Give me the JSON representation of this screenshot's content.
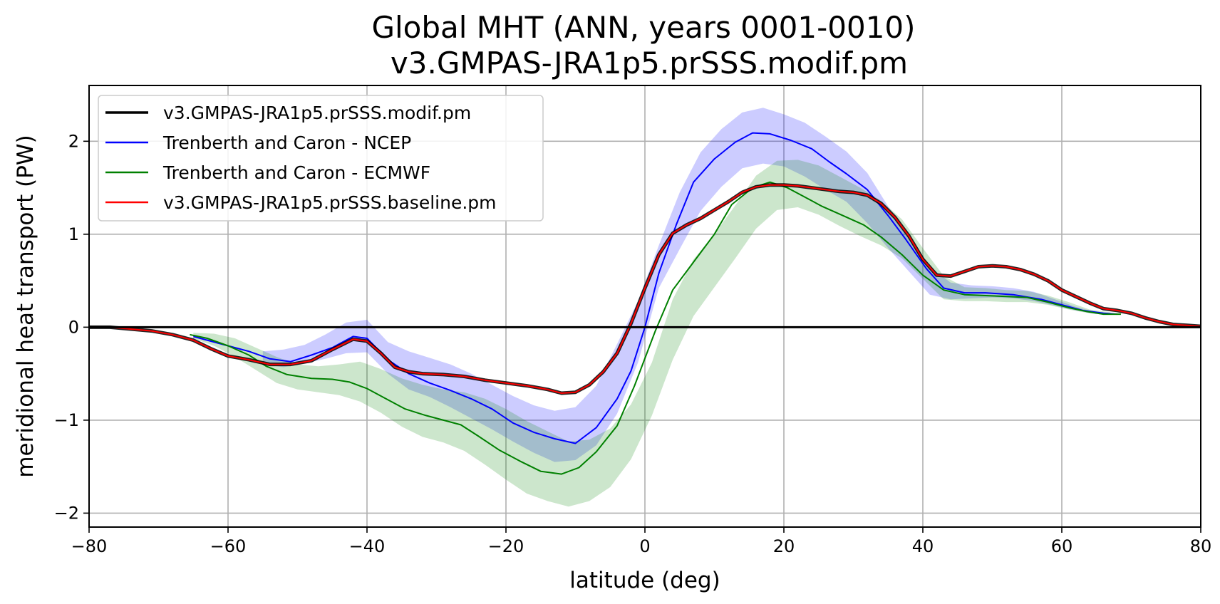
{
  "chart_data": {
    "type": "line",
    "title": "Global MHT (ANN, years 0001-0010)",
    "subtitle": "v3.GMPAS-JRA1p5.prSSS.modif.pm",
    "xlabel": "latitude (deg)",
    "ylabel": "meridional heat transport (PW)",
    "xlim": [
      -80,
      80
    ],
    "ylim": [
      -2.15,
      2.6
    ],
    "xticks": [
      -80,
      -60,
      -40,
      -20,
      0,
      20,
      40,
      60,
      80
    ],
    "xtick_labels": [
      "−80",
      "−60",
      "−40",
      "−20",
      "0",
      "20",
      "40",
      "60",
      "80"
    ],
    "yticks": [
      -2,
      -1,
      0,
      1,
      2
    ],
    "ytick_labels": [
      "−2",
      "−1",
      "0",
      "1",
      "2"
    ],
    "grid": true,
    "legend_position": "upper-left",
    "bands": [
      {
        "name": "NCEP uncertainty",
        "color": "#0000ff",
        "opacity": 0.2,
        "x": [
          -55,
          -52,
          -49,
          -46,
          -43,
          -40,
          -37,
          -34,
          -31,
          -28,
          -25,
          -22,
          -19,
          -16,
          -13,
          -10,
          -7,
          -4,
          -1,
          2,
          5,
          8,
          11,
          14,
          17,
          20,
          23,
          26,
          29,
          32,
          35,
          38,
          41,
          44,
          47,
          50,
          53,
          56,
          59,
          62,
          65
        ],
        "lower": [
          -0.4,
          -0.43,
          -0.39,
          -0.34,
          -0.28,
          -0.27,
          -0.5,
          -0.67,
          -0.75,
          -0.86,
          -0.98,
          -1.1,
          -1.23,
          -1.35,
          -1.45,
          -1.43,
          -1.27,
          -0.93,
          -0.38,
          0.42,
          0.84,
          1.25,
          1.51,
          1.71,
          1.76,
          1.73,
          1.62,
          1.48,
          1.35,
          1.12,
          0.85,
          0.6,
          0.35,
          0.3,
          0.31,
          0.32,
          0.31,
          0.28,
          0.23,
          0.18,
          0.14
        ],
        "upper": [
          -0.26,
          -0.24,
          -0.19,
          -0.08,
          0.05,
          0.08,
          -0.16,
          -0.26,
          -0.33,
          -0.4,
          -0.5,
          -0.62,
          -0.74,
          -0.84,
          -0.9,
          -0.86,
          -0.63,
          -0.18,
          0.28,
          0.88,
          1.45,
          1.88,
          2.13,
          2.31,
          2.36,
          2.29,
          2.2,
          2.05,
          1.89,
          1.66,
          1.3,
          1.0,
          0.65,
          0.48,
          0.45,
          0.44,
          0.42,
          0.38,
          0.3,
          0.22,
          0.16
        ]
      },
      {
        "name": "ECMWF uncertainty",
        "color": "#008000",
        "opacity": 0.2,
        "x": [
          -65,
          -62,
          -59,
          -56,
          -53,
          -50,
          -47,
          -44,
          -41,
          -38,
          -35,
          -32,
          -29,
          -26,
          -23,
          -20,
          -17,
          -14,
          -11,
          -8,
          -5,
          -2,
          1,
          4,
          7,
          10,
          13,
          16,
          19,
          22,
          25,
          28,
          31,
          34,
          37,
          40,
          43,
          46,
          49,
          52,
          55,
          58,
          61,
          64,
          67
        ],
        "lower": [
          -0.12,
          -0.2,
          -0.32,
          -0.46,
          -0.6,
          -0.67,
          -0.7,
          -0.73,
          -0.8,
          -0.92,
          -1.07,
          -1.18,
          -1.24,
          -1.33,
          -1.48,
          -1.64,
          -1.79,
          -1.87,
          -1.93,
          -1.87,
          -1.72,
          -1.42,
          -0.95,
          -0.35,
          0.12,
          0.43,
          0.74,
          1.06,
          1.26,
          1.29,
          1.21,
          1.09,
          0.98,
          0.88,
          0.74,
          0.52,
          0.3,
          0.28,
          0.28,
          0.27,
          0.27,
          0.24,
          0.19,
          0.15,
          0.14
        ],
        "upper": [
          -0.06,
          -0.07,
          -0.12,
          -0.22,
          -0.32,
          -0.4,
          -0.42,
          -0.4,
          -0.37,
          -0.45,
          -0.55,
          -0.62,
          -0.67,
          -0.7,
          -0.77,
          -0.88,
          -1.01,
          -1.12,
          -1.23,
          -1.21,
          -1.09,
          -0.83,
          -0.38,
          0.3,
          0.73,
          1.0,
          1.31,
          1.63,
          1.79,
          1.8,
          1.74,
          1.62,
          1.5,
          1.36,
          1.16,
          0.85,
          0.55,
          0.43,
          0.42,
          0.4,
          0.39,
          0.34,
          0.27,
          0.19,
          0.16
        ]
      }
    ],
    "series": [
      {
        "name": "v3.GMPAS-JRA1p5.prSSS.modif.pm",
        "color": "#000000",
        "width": 3,
        "x": [
          -80,
          80
        ],
        "values": [
          0.0,
          0.0
        ]
      },
      {
        "name": "Trenberth and Caron - NCEP",
        "color": "#0000ff",
        "width": 2,
        "x": [
          -65,
          -60,
          -57,
          -54,
          -51,
          -48,
          -45,
          -42,
          -40,
          -37,
          -34,
          -31,
          -28,
          -25,
          -22,
          -19,
          -16,
          -13,
          -10,
          -7,
          -4,
          -2,
          0,
          2,
          4.5,
          7,
          10,
          13,
          15.5,
          18,
          21,
          24,
          26.5,
          29,
          32,
          35,
          37.5,
          40.5,
          43,
          46,
          49,
          53,
          57,
          60,
          63,
          66,
          68
        ],
        "values": [
          -0.1,
          -0.2,
          -0.26,
          -0.34,
          -0.37,
          -0.3,
          -0.22,
          -0.1,
          -0.12,
          -0.35,
          -0.5,
          -0.6,
          -0.68,
          -0.77,
          -0.88,
          -1.03,
          -1.13,
          -1.2,
          -1.25,
          -1.08,
          -0.77,
          -0.47,
          0.0,
          0.58,
          1.1,
          1.56,
          1.81,
          1.99,
          2.09,
          2.08,
          2.01,
          1.92,
          1.78,
          1.65,
          1.48,
          1.2,
          0.95,
          0.63,
          0.42,
          0.37,
          0.37,
          0.35,
          0.3,
          0.24,
          0.18,
          0.15,
          0.14
        ]
      },
      {
        "name": "Trenberth and Caron - ECMWF",
        "color": "#008000",
        "width": 2,
        "x": [
          -65.5,
          -63,
          -60,
          -57,
          -54.5,
          -51.5,
          -48,
          -45,
          -42.5,
          -40,
          -37.5,
          -34.5,
          -31.5,
          -29,
          -26.5,
          -24,
          -21,
          -18,
          -15,
          -12,
          -9.5,
          -7,
          -4,
          -1.5,
          1.5,
          4,
          7,
          10,
          12.5,
          15.5,
          18,
          20.5,
          23,
          25.5,
          28.5,
          31.5,
          34,
          37,
          40,
          43,
          46,
          49,
          52,
          55,
          58,
          61,
          63.5,
          66,
          68.5
        ],
        "values": [
          -0.08,
          -0.12,
          -0.2,
          -0.3,
          -0.42,
          -0.51,
          -0.55,
          -0.56,
          -0.59,
          -0.66,
          -0.76,
          -0.88,
          -0.95,
          -1.0,
          -1.05,
          -1.17,
          -1.32,
          -1.44,
          -1.55,
          -1.58,
          -1.51,
          -1.34,
          -1.06,
          -0.63,
          -0.04,
          0.4,
          0.7,
          1.0,
          1.32,
          1.5,
          1.56,
          1.5,
          1.4,
          1.3,
          1.2,
          1.1,
          0.97,
          0.78,
          0.56,
          0.4,
          0.35,
          0.34,
          0.33,
          0.32,
          0.27,
          0.21,
          0.17,
          0.14,
          0.14
        ]
      },
      {
        "name": "v3.GMPAS-JRA1p5.prSSS.baseline.pm",
        "color": "#ff0000",
        "width": 2,
        "x": [
          -80,
          -77,
          -74,
          -71,
          -68,
          -65,
          -62.5,
          -60,
          -57,
          -54,
          -51,
          -48,
          -45,
          -42,
          -40,
          -38,
          -36,
          -34,
          -32,
          -29,
          -26,
          -23,
          -20,
          -17,
          -14,
          -12,
          -10,
          -8,
          -6,
          -4,
          -2,
          0,
          2,
          4,
          6,
          8,
          10,
          12,
          14,
          16,
          18,
          20,
          22,
          24,
          26,
          28,
          30,
          32,
          34,
          36,
          38,
          40,
          42,
          44,
          46,
          48,
          50,
          52,
          54,
          56,
          58,
          60,
          62,
          64,
          66,
          68,
          70,
          72,
          74,
          76,
          78,
          80
        ],
        "values": [
          0.0,
          0.0,
          -0.02,
          -0.04,
          -0.08,
          -0.14,
          -0.23,
          -0.31,
          -0.35,
          -0.4,
          -0.4,
          -0.36,
          -0.24,
          -0.13,
          -0.15,
          -0.28,
          -0.43,
          -0.48,
          -0.5,
          -0.51,
          -0.53,
          -0.57,
          -0.6,
          -0.63,
          -0.67,
          -0.71,
          -0.7,
          -0.62,
          -0.48,
          -0.28,
          0.04,
          0.42,
          0.78,
          1.01,
          1.1,
          1.17,
          1.26,
          1.35,
          1.45,
          1.51,
          1.53,
          1.53,
          1.52,
          1.5,
          1.48,
          1.46,
          1.45,
          1.42,
          1.33,
          1.18,
          0.98,
          0.73,
          0.56,
          0.55,
          0.6,
          0.65,
          0.66,
          0.65,
          0.62,
          0.57,
          0.5,
          0.4,
          0.33,
          0.26,
          0.2,
          0.18,
          0.15,
          0.1,
          0.06,
          0.03,
          0.02,
          0.01
        ]
      }
    ]
  }
}
